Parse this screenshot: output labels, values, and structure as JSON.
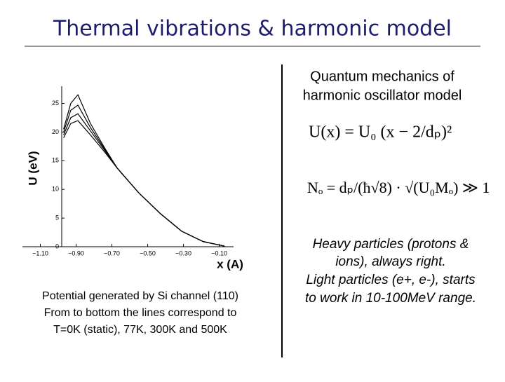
{
  "header": {
    "title": "Thermal vibrations & harmonic model"
  },
  "figure": {
    "chart_data": {
      "type": "line",
      "y_label": "U (eV)",
      "x_label": "x (A)",
      "x": [
        -0.97,
        -0.93,
        -0.89,
        -0.82,
        -0.74,
        -0.67,
        -0.55,
        -0.43,
        -0.31,
        -0.19,
        -0.07
      ],
      "series": [
        {
          "color": "#000000",
          "values": [
            20.5,
            25,
            26.5,
            21.5,
            17.2,
            13.7,
            9.4,
            5.8,
            2.7,
            0.9,
            0.1
          ]
        },
        {
          "color": "#000000",
          "values": [
            20,
            23.8,
            24.7,
            20.8,
            17,
            13.7,
            9.4,
            5.8,
            2.7,
            0.9,
            0.1
          ]
        },
        {
          "color": "#000000",
          "values": [
            19.5,
            22.5,
            23.2,
            20.2,
            16.8,
            13.7,
            9.4,
            5.8,
            2.7,
            0.9,
            0.1
          ]
        },
        {
          "color": "#000000",
          "values": [
            19,
            21.5,
            22,
            19.5,
            16.5,
            13.7,
            9.4,
            5.8,
            2.7,
            0.9,
            0.1
          ]
        }
      ],
      "xlim": [
        -1.2,
        -0.02
      ],
      "ylim": [
        0,
        28
      ],
      "xticks": [
        {
          "value": -1.1,
          "label": "−1.10"
        },
        {
          "value": -0.9,
          "label": "−0.90"
        },
        {
          "value": -0.7,
          "label": "−0.70"
        },
        {
          "value": -0.5,
          "label": "−0.50"
        },
        {
          "value": -0.3,
          "label": "−0.30"
        },
        {
          "value": -0.1,
          "label": "−0.10"
        }
      ],
      "yticks": [
        0,
        5,
        10,
        15,
        20,
        25
      ]
    },
    "caption": [
      "Potential generated by Si channel (110)",
      "From to bottom the lines correspond to",
      "T=0K (static), 77K, 300K and 500K"
    ]
  },
  "right": {
    "heading": [
      "Quantum mechanics of",
      "harmonic oscillator model"
    ],
    "equations": [
      "U(x) = U₀ (x − 2/dₚ)²",
      "Nₒ = dₚ/(ħ√8) · √(U₀Mₒ) ≫ 1"
    ],
    "note": [
      "Heavy particles (protons &",
      "ions),  always right.",
      "Light particles (e+, e-),  starts",
      "to work in 10-100MeV range."
    ]
  }
}
